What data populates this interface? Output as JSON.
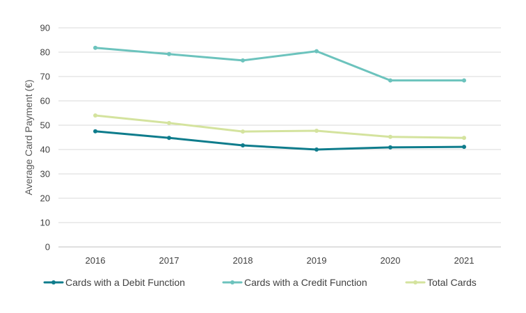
{
  "chart_data": {
    "type": "line",
    "title": "",
    "xlabel": "",
    "ylabel": "Average Card Payment (€)",
    "categories": [
      "2016",
      "2017",
      "2018",
      "2019",
      "2020",
      "2021"
    ],
    "ylim": [
      0,
      90
    ],
    "yticks": [
      0,
      10,
      20,
      30,
      40,
      50,
      60,
      70,
      80,
      90
    ],
    "grid": true,
    "legend_position": "bottom",
    "series": [
      {
        "name": "Cards with a Debit Function",
        "color": "#0E7C8C",
        "values": [
          47.5,
          44.8,
          41.7,
          40.0,
          40.9,
          41.1
        ]
      },
      {
        "name": "Cards with a Credit Function",
        "color": "#6CC3BD",
        "values": [
          81.8,
          79.2,
          76.6,
          80.4,
          68.4,
          68.4
        ]
      },
      {
        "name": "Total Cards",
        "color": "#D4E39E",
        "values": [
          54.0,
          50.9,
          47.4,
          47.7,
          45.2,
          44.8
        ]
      }
    ]
  }
}
